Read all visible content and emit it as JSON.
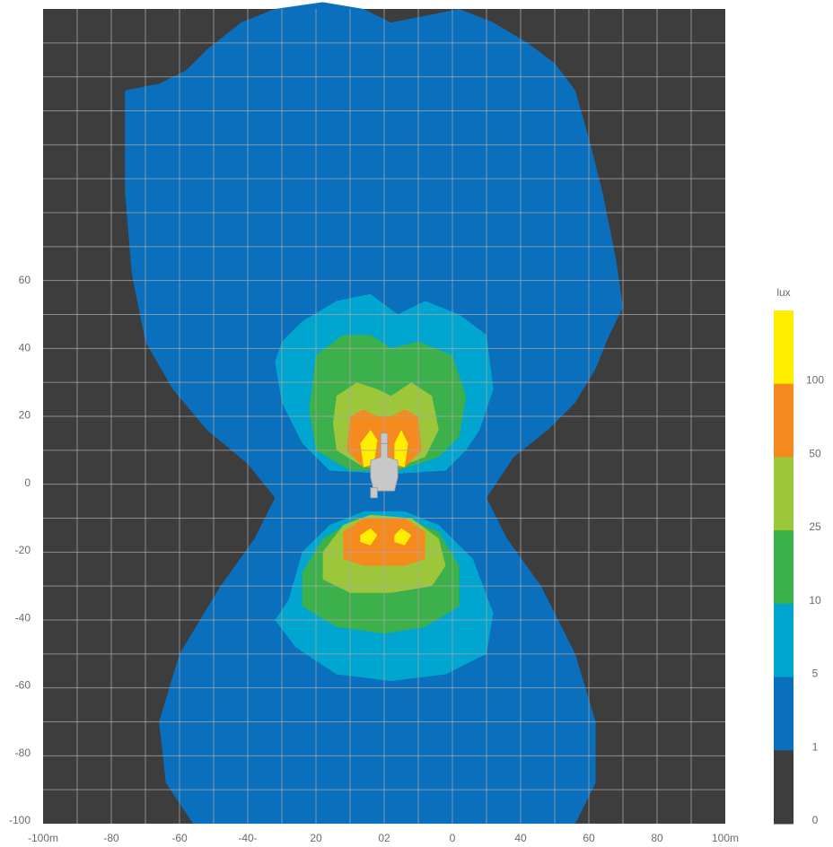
{
  "chart_data": {
    "type": "heatmap",
    "title": "",
    "xlabel": "",
    "ylabel": "",
    "x_tick_labels": [
      "-100m",
      "-80",
      "-60",
      "-40-",
      "20",
      "02",
      "0",
      "40",
      "60",
      "80",
      "100m"
    ],
    "y_tick_labels": [
      "60",
      "40",
      "20",
      "0",
      "-20",
      "-40",
      "-60",
      "-80",
      "-100"
    ],
    "xlim": [
      -100,
      100
    ],
    "ylim": [
      -100,
      140
    ],
    "grid": true,
    "background_color": "#3d3d3d",
    "vehicle_color": "#c8c8c8",
    "legend": {
      "title": "lux",
      "placement": "right",
      "bands": [
        {
          "from": 100,
          "to": null,
          "color": "#ffee00"
        },
        {
          "from": 50,
          "to": 100,
          "color": "#f58a1f"
        },
        {
          "from": 25,
          "to": 50,
          "color": "#9dc73b"
        },
        {
          "from": 10,
          "to": 25,
          "color": "#3cb04a"
        },
        {
          "from": 5,
          "to": 10,
          "color": "#00a6cf"
        },
        {
          "from": 1,
          "to": 5,
          "color": "#0a6fbc"
        },
        {
          "from": 0,
          "to": 1,
          "color": "#3d3d3d"
        }
      ],
      "tick_labels": [
        "100",
        "50",
        "25",
        "10",
        "5",
        "1",
        "0"
      ]
    },
    "contours": [
      {
        "level": 1,
        "color": "#0a6fbc",
        "points": [
          [
            -76,
            116
          ],
          [
            -66,
            118
          ],
          [
            -58,
            122
          ],
          [
            -52,
            128
          ],
          [
            -42,
            136
          ],
          [
            -32,
            140
          ],
          [
            -18,
            142
          ],
          [
            -6,
            140
          ],
          [
            2,
            136
          ],
          [
            12,
            138
          ],
          [
            22,
            140
          ],
          [
            32,
            136
          ],
          [
            42,
            130
          ],
          [
            50,
            124
          ],
          [
            56,
            116
          ],
          [
            60,
            102
          ],
          [
            64,
            86
          ],
          [
            68,
            66
          ],
          [
            70,
            52
          ],
          [
            66,
            44
          ],
          [
            62,
            34
          ],
          [
            56,
            24
          ],
          [
            48,
            16
          ],
          [
            38,
            8
          ],
          [
            30,
            -4
          ],
          [
            36,
            -16
          ],
          [
            46,
            -30
          ],
          [
            56,
            -50
          ],
          [
            62,
            -70
          ],
          [
            62,
            -88
          ],
          [
            56,
            -100
          ],
          [
            -56,
            -100
          ],
          [
            -64,
            -88
          ],
          [
            -66,
            -70
          ],
          [
            -60,
            -50
          ],
          [
            -48,
            -30
          ],
          [
            -38,
            -16
          ],
          [
            -32,
            -4
          ],
          [
            -40,
            6
          ],
          [
            -52,
            16
          ],
          [
            -62,
            28
          ],
          [
            -70,
            42
          ],
          [
            -74,
            62
          ],
          [
            -76,
            86
          ],
          [
            -76,
            116
          ]
        ]
      },
      {
        "level": 5,
        "color": "#00a6cf",
        "points": [
          [
            -30,
            42
          ],
          [
            -24,
            48
          ],
          [
            -14,
            54
          ],
          [
            -4,
            56
          ],
          [
            4,
            50
          ],
          [
            12,
            54
          ],
          [
            22,
            50
          ],
          [
            30,
            44
          ],
          [
            32,
            28
          ],
          [
            28,
            16
          ],
          [
            24,
            10
          ],
          [
            18,
            4
          ],
          [
            2,
            3
          ],
          [
            -16,
            4
          ],
          [
            -24,
            12
          ],
          [
            -30,
            24
          ],
          [
            -32,
            36
          ],
          [
            -30,
            42
          ]
        ]
      },
      {
        "level": 5,
        "color": "#00a6cf",
        "points": [
          [
            -28,
            -34
          ],
          [
            -24,
            -20
          ],
          [
            -16,
            -12
          ],
          [
            -6,
            -8
          ],
          [
            6,
            -8
          ],
          [
            16,
            -12
          ],
          [
            26,
            -22
          ],
          [
            32,
            -38
          ],
          [
            30,
            -50
          ],
          [
            18,
            -56
          ],
          [
            2,
            -58
          ],
          [
            -14,
            -56
          ],
          [
            -26,
            -48
          ],
          [
            -32,
            -40
          ],
          [
            -28,
            -34
          ]
        ]
      },
      {
        "level": 10,
        "color": "#3cb04a",
        "points": [
          [
            -20,
            38
          ],
          [
            -12,
            44
          ],
          [
            -4,
            44
          ],
          [
            2,
            40
          ],
          [
            10,
            42
          ],
          [
            20,
            38
          ],
          [
            24,
            26
          ],
          [
            22,
            14
          ],
          [
            16,
            8
          ],
          [
            4,
            4
          ],
          [
            -10,
            4
          ],
          [
            -20,
            10
          ],
          [
            -22,
            22
          ],
          [
            -20,
            38
          ]
        ]
      },
      {
        "level": 10,
        "color": "#3cb04a",
        "points": [
          [
            -24,
            -26
          ],
          [
            -18,
            -16
          ],
          [
            -8,
            -10
          ],
          [
            6,
            -10
          ],
          [
            16,
            -14
          ],
          [
            22,
            -24
          ],
          [
            22,
            -36
          ],
          [
            12,
            -42
          ],
          [
            0,
            -44
          ],
          [
            -14,
            -42
          ],
          [
            -24,
            -36
          ],
          [
            -24,
            -26
          ]
        ]
      },
      {
        "level": 25,
        "color": "#9dc73b",
        "points": [
          [
            -14,
            26
          ],
          [
            -8,
            30
          ],
          [
            -2,
            28
          ],
          [
            2,
            26
          ],
          [
            8,
            30
          ],
          [
            14,
            26
          ],
          [
            16,
            16
          ],
          [
            12,
            8
          ],
          [
            4,
            5
          ],
          [
            -6,
            5
          ],
          [
            -14,
            10
          ],
          [
            -15,
            18
          ],
          [
            -14,
            26
          ]
        ]
      },
      {
        "level": 25,
        "color": "#9dc73b",
        "points": [
          [
            -18,
            -20
          ],
          [
            -12,
            -12
          ],
          [
            -4,
            -9
          ],
          [
            8,
            -10
          ],
          [
            16,
            -16
          ],
          [
            18,
            -24
          ],
          [
            14,
            -30
          ],
          [
            2,
            -32
          ],
          [
            -10,
            -32
          ],
          [
            -18,
            -28
          ],
          [
            -18,
            -20
          ]
        ]
      },
      {
        "level": 50,
        "color": "#f58a1f",
        "points": [
          [
            -10,
            20
          ],
          [
            -6,
            22
          ],
          [
            -2,
            20
          ],
          [
            2,
            20
          ],
          [
            6,
            22
          ],
          [
            10,
            20
          ],
          [
            11,
            10
          ],
          [
            6,
            5
          ],
          [
            -6,
            5
          ],
          [
            -11,
            10
          ],
          [
            -10,
            20
          ]
        ]
      },
      {
        "level": 50,
        "color": "#f58a1f",
        "points": [
          [
            -12,
            -14
          ],
          [
            -6,
            -10
          ],
          [
            0,
            -10
          ],
          [
            6,
            -10
          ],
          [
            12,
            -14
          ],
          [
            12,
            -22
          ],
          [
            6,
            -24
          ],
          [
            -6,
            -24
          ],
          [
            -12,
            -22
          ],
          [
            -12,
            -14
          ]
        ]
      },
      {
        "level": 100,
        "color": "#ffee00",
        "points": [
          [
            -7,
            12
          ],
          [
            -4,
            16
          ],
          [
            -2,
            13
          ],
          [
            -3,
            6
          ],
          [
            -6,
            5
          ],
          [
            -7,
            12
          ]
        ]
      },
      {
        "level": 100,
        "color": "#ffee00",
        "points": [
          [
            3,
            12
          ],
          [
            5,
            16
          ],
          [
            7,
            12
          ],
          [
            6,
            5
          ],
          [
            3,
            6
          ],
          [
            3,
            12
          ]
        ]
      },
      {
        "level": 100,
        "color": "#ffee00",
        "points": [
          [
            -7,
            -15
          ],
          [
            -4,
            -13
          ],
          [
            -2,
            -15
          ],
          [
            -4,
            -18
          ],
          [
            -7,
            -17
          ],
          [
            -7,
            -15
          ]
        ]
      },
      {
        "level": 100,
        "color": "#ffee00",
        "points": [
          [
            3,
            -15
          ],
          [
            5,
            -13
          ],
          [
            8,
            -15
          ],
          [
            6,
            -18
          ],
          [
            3,
            -17
          ],
          [
            3,
            -15
          ]
        ]
      }
    ]
  }
}
